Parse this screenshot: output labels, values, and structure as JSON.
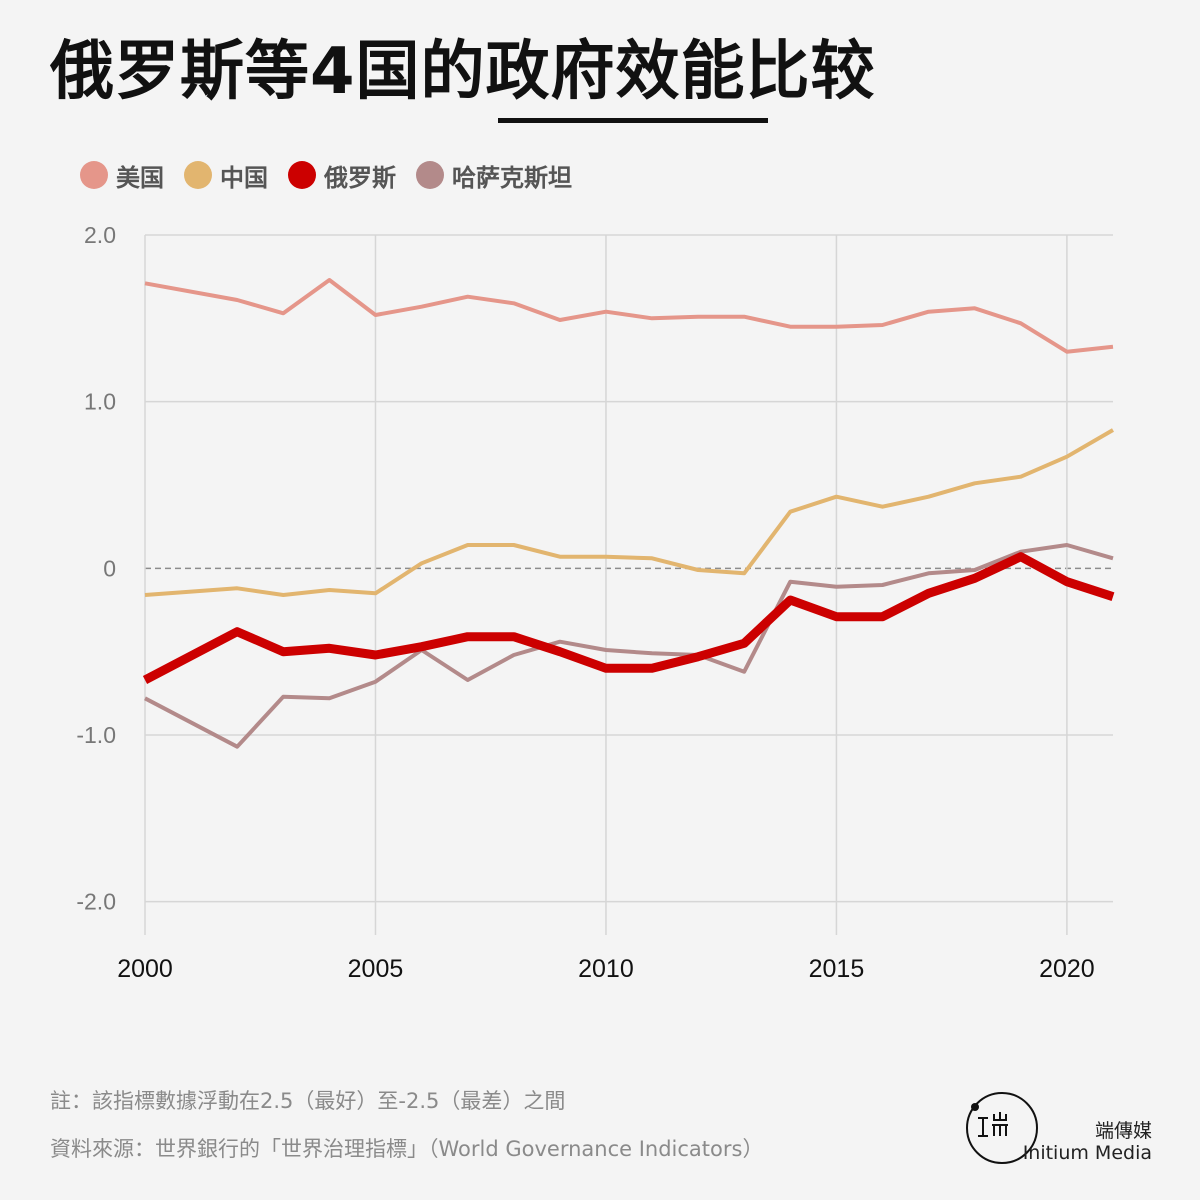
{
  "header": {
    "title": "俄罗斯等4国的政府效能比较"
  },
  "legend": [
    {
      "label": "美国",
      "color": "#e5968a"
    },
    {
      "label": "中国",
      "color": "#e2b56f"
    },
    {
      "label": "俄罗斯",
      "color": "#cc0000"
    },
    {
      "label": "哈萨克斯坦",
      "color": "#b38a8a"
    }
  ],
  "chart_data": {
    "type": "line",
    "title": "俄罗斯等4国的政府效能比较",
    "xlabel": "",
    "ylabel": "",
    "xlim": [
      2000,
      2021
    ],
    "ylim": [
      -2.2,
      2.0
    ],
    "x_ticks": [
      2000,
      2005,
      2010,
      2015,
      2020
    ],
    "x_tick_labels": [
      "2000",
      "2005",
      "2010",
      "2015",
      "2020"
    ],
    "y_ticks": [
      2.0,
      1.0,
      0,
      -1.0,
      -2.0
    ],
    "y_tick_labels": [
      "2.0",
      "1.0",
      "0",
      "-1.0",
      "-2.0"
    ],
    "grid": true,
    "zero_line": "dashed",
    "legend_position": "top-left",
    "x": [
      2000,
      2002,
      2003,
      2004,
      2005,
      2006,
      2007,
      2008,
      2009,
      2010,
      2011,
      2012,
      2013,
      2014,
      2015,
      2016,
      2017,
      2018,
      2019,
      2020,
      2021
    ],
    "series": [
      {
        "name": "美国",
        "color": "#e5968a",
        "width": 4,
        "values": [
          1.71,
          1.61,
          1.53,
          1.73,
          1.52,
          1.57,
          1.63,
          1.59,
          1.49,
          1.54,
          1.5,
          1.51,
          1.51,
          1.45,
          1.45,
          1.46,
          1.54,
          1.56,
          1.47,
          1.3,
          1.33
        ]
      },
      {
        "name": "中国",
        "color": "#e2b56f",
        "width": 4,
        "values": [
          -0.16,
          -0.12,
          -0.16,
          -0.13,
          -0.15,
          0.03,
          0.14,
          0.14,
          0.07,
          0.07,
          0.06,
          -0.01,
          -0.03,
          0.34,
          0.43,
          0.37,
          0.43,
          0.51,
          0.55,
          0.67,
          0.83
        ]
      },
      {
        "name": "俄罗斯",
        "color": "#cc0000",
        "width": 9,
        "values": [
          -0.67,
          -0.38,
          -0.5,
          -0.48,
          -0.52,
          -0.47,
          -0.41,
          -0.41,
          -0.5,
          -0.6,
          -0.6,
          -0.53,
          -0.45,
          -0.19,
          -0.29,
          -0.29,
          -0.15,
          -0.06,
          0.07,
          -0.08,
          -0.17
        ]
      },
      {
        "name": "哈萨克斯坦",
        "color": "#b38a8a",
        "width": 4,
        "values": [
          -0.78,
          -1.07,
          -0.77,
          -0.78,
          -0.68,
          -0.49,
          -0.67,
          -0.52,
          -0.44,
          -0.49,
          -0.51,
          -0.52,
          -0.62,
          -0.08,
          -0.11,
          -0.1,
          -0.03,
          -0.01,
          0.1,
          0.14,
          0.06
        ]
      }
    ]
  },
  "footer": {
    "footnote": "註：該指標數據浮動在2.5（最好）至-2.5（最差）之間",
    "source": "資料來源：世界銀行的「世界治理指標」（World Governance Indicators）",
    "brand_cn": "端傳媒",
    "brand_en": "Initium Media"
  }
}
